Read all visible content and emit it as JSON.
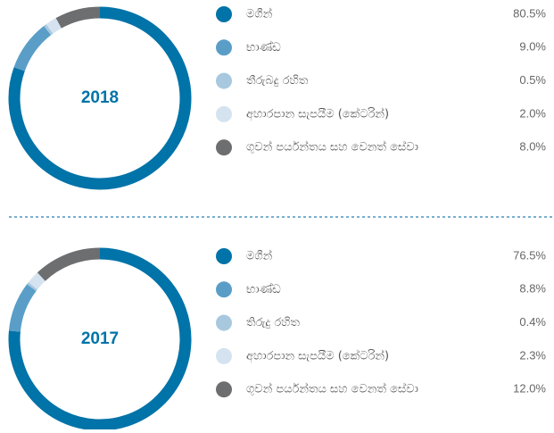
{
  "chart_data": [
    {
      "type": "pie",
      "title": "2018",
      "categories": [
        "මගීන්",
        "භාණ්ඩ",
        "තීරුබදු රහිත",
        "අහාරපාන සැපයීම (කේටරින්)",
        "ගුවන් පර්යන්තය සහ වෙනත් සේවා"
      ],
      "values": [
        80.5,
        9.0,
        0.5,
        2.0,
        8.0
      ],
      "value_labels": [
        "80.5%",
        "9.0%",
        "0.5%",
        "2.0%",
        "8.0%"
      ],
      "colors": [
        "#0073a8",
        "#5a9ec8",
        "#a7c8df",
        "#d4e3ef",
        "#6d6e70"
      ]
    },
    {
      "type": "pie",
      "title": "2017",
      "categories": [
        "මගීන්",
        "භාණ්ඩ",
        "තිරුදු රහිත",
        "අහාරපාන සැපයීම (කේටරින්)",
        "ගුවන් පර්යන්තය සහ වෙනත් සේවා"
      ],
      "values": [
        76.5,
        8.8,
        0.4,
        2.3,
        12.0
      ],
      "value_labels": [
        "76.5%",
        "8.8%",
        "0.4%",
        "2.3%",
        "12.0%"
      ],
      "colors": [
        "#0073a8",
        "#5a9ec8",
        "#a7c8df",
        "#d4e3ef",
        "#6d6e70"
      ]
    }
  ]
}
